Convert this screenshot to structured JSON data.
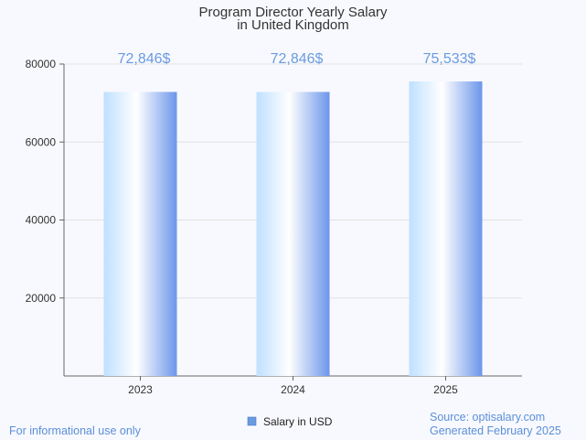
{
  "chart_data": {
    "type": "bar",
    "title": [
      "Program Director Yearly Salary",
      "in United Kingdom"
    ],
    "categories": [
      "2023",
      "2024",
      "2025"
    ],
    "series": [
      {
        "name": "Salary in USD",
        "values": [
          72846,
          72846,
          75533
        ],
        "labels": [
          "72,846$",
          "72,846$",
          "75,533$"
        ]
      }
    ],
    "ylim": [
      0,
      80000
    ],
    "yticks": [
      20000,
      40000,
      60000,
      80000
    ],
    "grid": true,
    "legend": "bottom-center"
  },
  "footer": {
    "left_note": "For informational use only",
    "source": "Source: optisalary.com",
    "generated": "Generated February 2025"
  },
  "colors": {
    "bar_light": "#e8f4ff",
    "bar_mid": "#bfe0ff",
    "bar_dark": "#6b96ea",
    "data_label": "#6a9be0",
    "footer": "#5b8fd9",
    "grid": "#e2e2e2",
    "axis": "#666666",
    "legend_swatch": "#6a9be0"
  }
}
